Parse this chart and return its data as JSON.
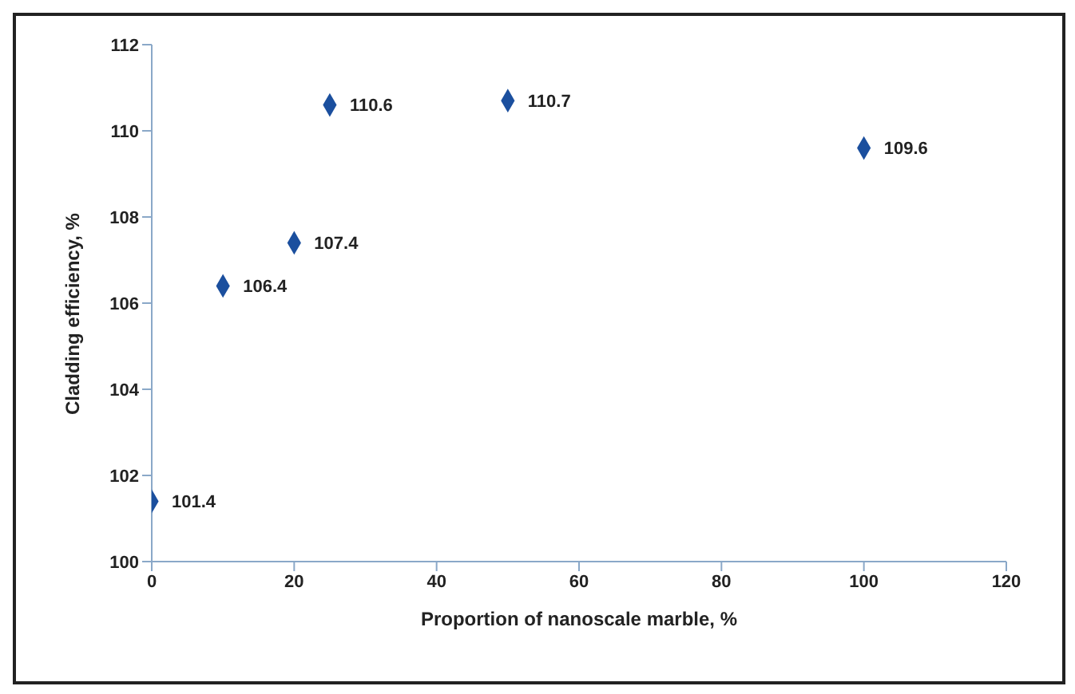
{
  "chart_data": {
    "type": "scatter",
    "xlabel": "Proportion of nanoscale marble, %",
    "ylabel": "Cladding efficiency, %",
    "x": [
      0,
      10,
      20,
      25,
      50,
      100
    ],
    "series": [
      {
        "color": "#1b4f9e",
        "values": [
          101.4,
          106.4,
          107.4,
          110.6,
          110.7,
          109.6
        ]
      }
    ],
    "xlim": [
      0,
      120
    ],
    "xticks": [
      0,
      20,
      40,
      60,
      80,
      100,
      120
    ],
    "ylim": [
      100,
      112
    ],
    "yticks": [
      100,
      102,
      104,
      106,
      108,
      110,
      112
    ],
    "data_labels": true,
    "marker": "diamond",
    "grid": false,
    "legend": false
  }
}
